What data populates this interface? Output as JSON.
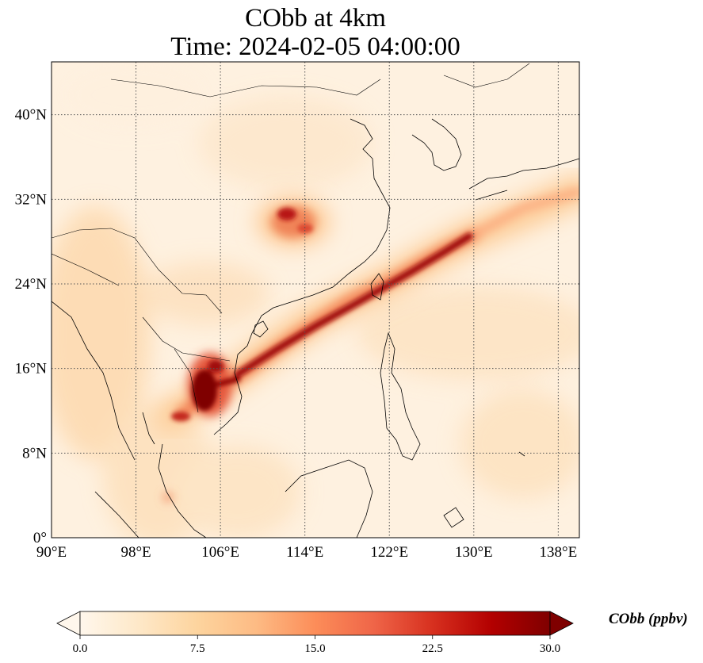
{
  "title": {
    "line1": "CObb at 4km",
    "line2": "Time: 2024-02-05 04:00:00"
  },
  "map": {
    "lon_range": [
      90,
      140
    ],
    "lat_range": [
      0,
      45
    ],
    "lon_ticks": [
      "90°E",
      "98°E",
      "106°E",
      "114°E",
      "122°E",
      "130°E",
      "138°E"
    ],
    "lat_ticks": [
      "0°",
      "8°N",
      "16°N",
      "24°N",
      "32°N",
      "40°N"
    ],
    "gridlines": "dotted"
  },
  "colorbar": {
    "label": "CObb (ppbv)",
    "ticks": [
      "0.0",
      "7.5",
      "15.0",
      "22.5",
      "30.0"
    ],
    "range": [
      0,
      30
    ],
    "colormap": "OrRd",
    "colors": [
      "#fff7ec",
      "#fee8c8",
      "#fdd49e",
      "#fdbb84",
      "#fc8d59",
      "#ef6548",
      "#d7301f",
      "#b30000",
      "#7f0000"
    ],
    "extend": "both"
  }
}
